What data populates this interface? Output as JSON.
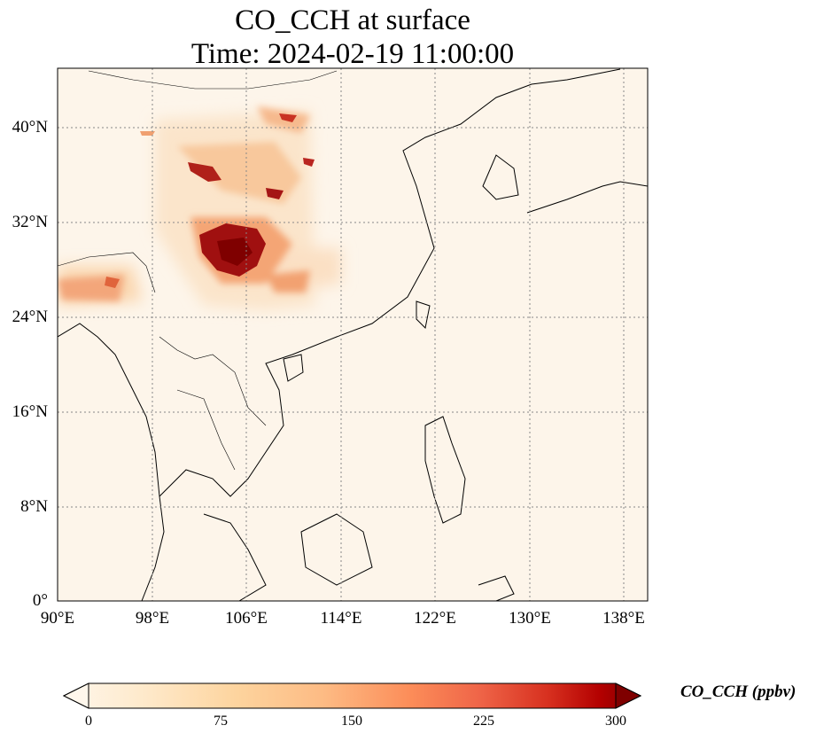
{
  "title": {
    "line1": "CO_CCH at surface",
    "line2": "Time: 2024-02-19 11:00:00"
  },
  "map": {
    "type": "heatmap",
    "lon_range": [
      90,
      140
    ],
    "lat_range": [
      0,
      44
    ],
    "lat_ticks": [
      "40°N",
      "32°N",
      "24°N",
      "16°N",
      "8°N",
      "0°"
    ],
    "lon_ticks": [
      "90°E",
      "98°E",
      "106°E",
      "114°E",
      "122°E",
      "130°E",
      "138°E"
    ],
    "gridlines": "dotted",
    "colormap": "OrRd"
  },
  "colorbar": {
    "ticks": [
      "0",
      "75",
      "150",
      "225",
      "300"
    ],
    "label": "CO_CCH (ppbv)",
    "range": [
      0,
      300
    ],
    "extend": "both"
  },
  "colors": {
    "low": "#fff7ec",
    "mid": "#fdbb84",
    "high": "#7f0000"
  }
}
